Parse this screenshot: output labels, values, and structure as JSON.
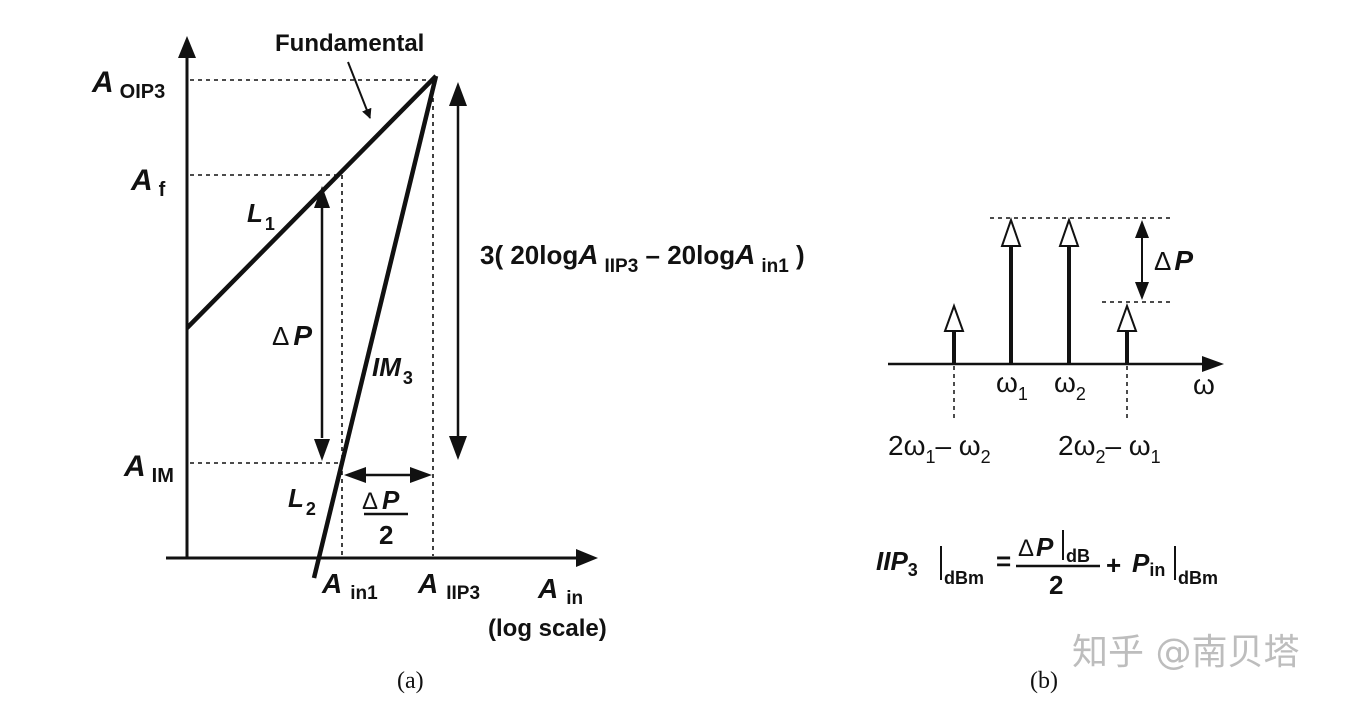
{
  "panel_a": {
    "fundamental_label": "Fundamental",
    "y_labels": {
      "aoip3_main": "A",
      "aoip3_sub": "OIP3",
      "af_main": "A",
      "af_sub": "f",
      "aim_main": "A",
      "aim_sub": "IM"
    },
    "x_labels": {
      "ain1_main": "A",
      "ain1_sub": "in1",
      "aiip3_main": "A",
      "aiip3_sub": "IIP3",
      "ain_main": "A",
      "ain_sub": "in",
      "log_scale": "(log scale)"
    },
    "line_labels": {
      "l1_main": "L",
      "l1_sub": "1",
      "l2_main": "L",
      "l2_sub": "2",
      "im3_main": "IM",
      "im3_sub": "3"
    },
    "delta_p": "Δ",
    "p": "P",
    "half": "2",
    "formula": {
      "prefix": "3( 20log",
      "a1": "A",
      "sub1": "IIP3",
      "mid": " – 20log",
      "a2": "A",
      "sub2": "in1",
      "suffix": " )"
    },
    "caption": "(a)"
  },
  "panel_b": {
    "omega": "ω",
    "omega1_main": "ω",
    "omega1_sub": "1",
    "omega2_main": "ω",
    "omega2_sub": "2",
    "im_low": {
      "c": "2ω",
      "s1": "1",
      "m": "– ω",
      "s2": "2"
    },
    "im_high": {
      "c": "2ω",
      "s1": "2",
      "m": "– ω",
      "s2": "1"
    },
    "delta_p": "Δ",
    "p": "P",
    "equation": {
      "lhs": "IIP",
      "lhs_sub": "3",
      "unit": "dBm",
      "num_delta": "Δ",
      "num_p": "P",
      "num_unit": "dB",
      "den": "2",
      "plus": "+",
      "pin": "P",
      "pin_sub": "in",
      "pin_unit": "dBm",
      "eq": "="
    },
    "caption": "(b)"
  },
  "watermark": "知乎 @南贝塔"
}
